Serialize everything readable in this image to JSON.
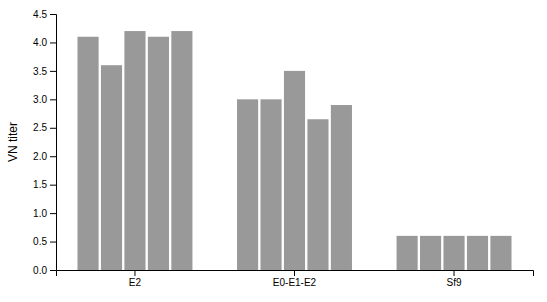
{
  "chart_data": {
    "type": "bar",
    "categories": [
      "E2",
      "E0-E1-E2",
      "Sf9"
    ],
    "series": [
      {
        "values": [
          4.1,
          3.0,
          0.6
        ]
      },
      {
        "values": [
          3.6,
          3.0,
          0.6
        ]
      },
      {
        "values": [
          4.2,
          3.5,
          0.6
        ]
      },
      {
        "values": [
          4.1,
          2.65,
          0.6
        ]
      },
      {
        "values": [
          4.2,
          2.9,
          0.6
        ]
      }
    ],
    "color": "#999999",
    "ylabel": "VN titer",
    "ylim": [
      0.0,
      4.5
    ],
    "yticks": [
      {
        "value": 0,
        "label": "0.0"
      },
      0.5,
      {
        "value": 1,
        "label": "1.0"
      },
      1.5,
      {
        "value": 2,
        "label": "2.0"
      },
      2.5,
      {
        "value": 3,
        "label": "3.0"
      },
      3.5,
      {
        "value": 4,
        "label": "4.0"
      },
      4.5
    ],
    "grid": false
  }
}
